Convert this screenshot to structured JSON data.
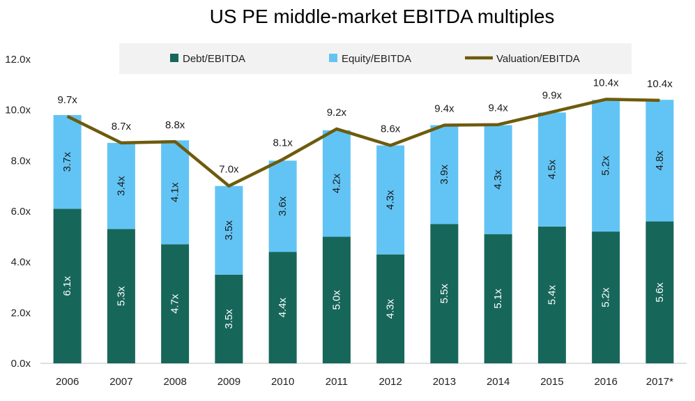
{
  "chart_data": {
    "type": "bar",
    "subtype": "stacked-bar-with-line",
    "title": "US PE middle-market EBITDA multiples",
    "categories": [
      "2006",
      "2007",
      "2008",
      "2009",
      "2010",
      "2011",
      "2012",
      "2013",
      "2014",
      "2015",
      "2016",
      "2017*"
    ],
    "series": [
      {
        "name": "Debt/EBITDA",
        "type": "bar",
        "color": "#17665a",
        "values": [
          6.1,
          5.3,
          4.7,
          3.5,
          4.4,
          5.0,
          4.3,
          5.5,
          5.1,
          5.4,
          5.2,
          5.6
        ],
        "labels": [
          "6.1x",
          "5.3x",
          "4.7x",
          "3.5x",
          "4.4x",
          "5.0x",
          "4.3x",
          "5.5x",
          "5.1x",
          "5.4x",
          "5.2x",
          "5.6x"
        ]
      },
      {
        "name": "Equity/EBITDA",
        "type": "bar",
        "color": "#62c4f4",
        "values": [
          3.7,
          3.4,
          4.1,
          3.5,
          3.6,
          4.2,
          4.3,
          3.9,
          4.3,
          4.5,
          5.2,
          4.8
        ],
        "labels": [
          "3.7x",
          "3.4x",
          "4.1x",
          "3.5x",
          "3.6x",
          "4.2x",
          "4.3x",
          "3.9x",
          "4.3x",
          "4.5x",
          "5.2x",
          "4.8x"
        ]
      },
      {
        "name": "Valuation/EBITDA",
        "type": "line",
        "color": "#6e5b0c",
        "values": [
          9.75,
          8.7,
          8.75,
          7.0,
          8.05,
          9.25,
          8.6,
          9.4,
          9.42,
          9.92,
          10.42,
          10.38
        ],
        "labels": [
          "9.7x",
          "8.7x",
          "8.8x",
          "7.0x",
          "8.1x",
          "9.2x",
          "8.6x",
          "9.4x",
          "9.4x",
          "9.9x",
          "10.4x",
          "10.4x"
        ]
      }
    ],
    "y_ticks": [
      "0.0x",
      "2.0x",
      "4.0x",
      "6.0x",
      "8.0x",
      "10.0x",
      "12.0x"
    ],
    "ylim": [
      0,
      12
    ],
    "grid": false,
    "legend_position": "top"
  }
}
